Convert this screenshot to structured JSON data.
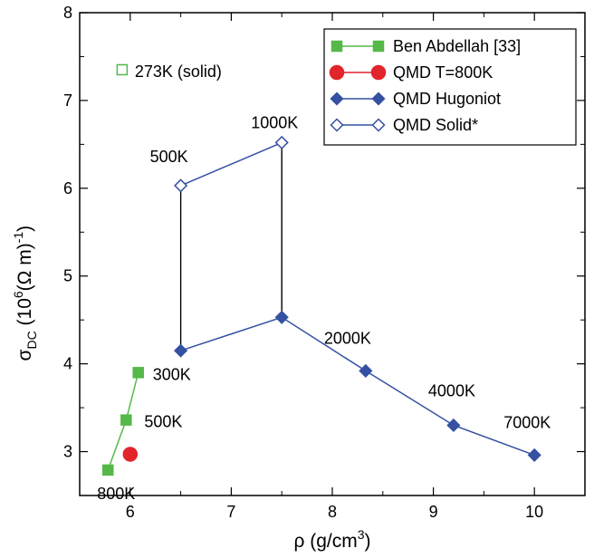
{
  "chart_data": {
    "type": "scatter",
    "xlabel": "ρ (g/cm",
    "xlabel_sup": "3",
    "xlabel_end": ")",
    "ylabel_parts": {
      "sigma": "σ",
      "sub": "DC",
      "open": " (10",
      "exp": "6",
      "unit": "(Ω m)",
      "inv": "-1",
      "close": ")"
    },
    "xlim": [
      5.5,
      10.5
    ],
    "ylim": [
      2.5,
      8
    ],
    "xticks": [
      6,
      7,
      8,
      9,
      10
    ],
    "yticks": [
      3,
      4,
      5,
      6,
      7,
      8
    ],
    "grid": false,
    "legend_position": "top-right",
    "series": [
      {
        "name": "Ben Abdellah [33]",
        "color": "#55b848",
        "marker": "square",
        "filled": true,
        "points": [
          {
            "x": 5.78,
            "y": 2.79,
            "label": "800K"
          },
          {
            "x": 5.96,
            "y": 3.36,
            "label": "500K"
          },
          {
            "x": 6.08,
            "y": 3.9,
            "label": "300K"
          }
        ]
      },
      {
        "name": "QMD T=800K",
        "color": "#e2242b",
        "marker": "circle",
        "filled": true,
        "points": [
          {
            "x": 6.0,
            "y": 2.97
          }
        ]
      },
      {
        "name": "QMD Hugoniot",
        "color": "#3451a2",
        "marker": "diamond",
        "filled": true,
        "points": [
          {
            "x": 6.5,
            "y": 4.15
          },
          {
            "x": 7.5,
            "y": 4.53
          },
          {
            "x": 8.33,
            "y": 3.92,
            "label": "2000K"
          },
          {
            "x": 9.2,
            "y": 3.3,
            "label": "4000K"
          },
          {
            "x": 10.0,
            "y": 2.96,
            "label": "7000K"
          }
        ]
      },
      {
        "name": "QMD Solid*",
        "color": "#3451a2",
        "marker": "diamond",
        "filled": false,
        "points": [
          {
            "x": 6.5,
            "y": 6.03,
            "label": "500K"
          },
          {
            "x": 7.5,
            "y": 6.52,
            "label": "1000K"
          }
        ]
      }
    ],
    "extra_points": [
      {
        "x": 5.92,
        "y": 7.35,
        "marker": "square",
        "filled": false,
        "color": "#55b848",
        "label": "273K (solid)"
      }
    ],
    "vertical_connectors": [
      {
        "x": 6.5,
        "y1": 4.15,
        "y2": 6.03,
        "color": "#000000"
      },
      {
        "x": 7.5,
        "y1": 4.53,
        "y2": 6.52,
        "color": "#000000"
      }
    ]
  }
}
